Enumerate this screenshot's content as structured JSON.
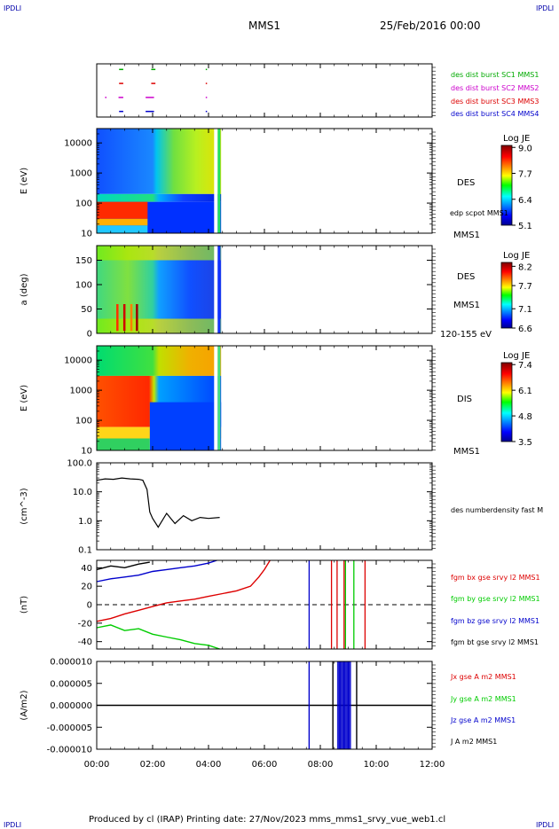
{
  "header": {
    "corner_left": "IPDLI",
    "corner_right": "IPDLI",
    "mission": "MMS1",
    "date": "25/Feb/2016 00:00"
  },
  "footer": {
    "text": "Produced by cl (IRAP)   Printing date: 27/Nov/2023   mms_mms1_srvy_vue_web1.cl",
    "corner_left": "IPDLI",
    "corner_right": "IPDLI"
  },
  "time_axis": {
    "range_hours": [
      0,
      12
    ],
    "tick_hours": [
      0,
      2,
      4,
      6,
      8,
      10,
      12
    ],
    "tick_labels": [
      "00:00",
      "02:00",
      "04:00",
      "06:00",
      "08:00",
      "10:00",
      "12:00"
    ]
  },
  "chart_data": [
    {
      "type": "scatter",
      "id": "burst",
      "yticks": [
        1,
        2,
        3,
        4
      ],
      "ylim": [
        0.6,
        4.4
      ],
      "series": [
        {
          "name": "des dist burst SC1 MMS1",
          "color": "#00aa00",
          "y": 4,
          "segments": [
            [
              0.8,
              0.95
            ],
            [
              1.95,
              2.1
            ],
            [
              3.9,
              3.92
            ]
          ]
        },
        {
          "name": "des dist burst SC2 MMS2",
          "color": "#cc00cc",
          "y": 2,
          "segments": [
            [
              0.3,
              0.35
            ],
            [
              0.78,
              0.95
            ],
            [
              1.75,
              2.05
            ],
            [
              3.9,
              3.92
            ]
          ]
        },
        {
          "name": "des dist burst SC3 MMS3",
          "color": "#dd0000",
          "y": 3,
          "segments": [
            [
              0.8,
              0.95
            ],
            [
              1.95,
              2.1
            ],
            [
              3.9,
              3.92
            ]
          ]
        },
        {
          "name": "des dist burst SC4 MMS4",
          "color": "#0000cc",
          "y": 1,
          "segments": [
            [
              0.8,
              0.95
            ],
            [
              1.75,
              2.05
            ],
            [
              3.9,
              3.92
            ]
          ]
        }
      ]
    },
    {
      "type": "heatmap",
      "id": "des_energy",
      "ylabel": "E (eV)",
      "yscale": "log",
      "ylim": [
        10,
        30000
      ],
      "ytick_values": [
        10,
        100,
        1000,
        10000
      ],
      "ytick_labels": [
        "10",
        "100",
        "1000",
        "10000"
      ],
      "side_labels": [
        "DES",
        "edp scpot MMS1",
        "MMS1"
      ],
      "colorbar": {
        "title": "Log JE",
        "min": 5.1,
        "max": 9.1,
        "tick_values": [
          9.0,
          7.7,
          6.4,
          5.1
        ],
        "tick_labels": [
          "9.0",
          "7.7",
          "6.4",
          "5.1"
        ]
      }
    },
    {
      "type": "heatmap",
      "id": "des_pitch",
      "ylabel": "a (deg)",
      "ylim": [
        0,
        180
      ],
      "ytick_values": [
        0,
        50,
        100,
        150
      ],
      "ytick_labels": [
        "0",
        "50",
        "100",
        "150"
      ],
      "side_labels": [
        "DES",
        "MMS1",
        "120-155 eV"
      ],
      "colorbar": {
        "title": "Log JE",
        "min": 6.6,
        "max": 8.3,
        "tick_values": [
          8.2,
          7.7,
          7.1,
          6.6
        ],
        "tick_labels": [
          "8.2",
          "7.7",
          "7.1",
          "6.6"
        ]
      }
    },
    {
      "type": "heatmap",
      "id": "dis_energy",
      "ylabel": "E (eV)",
      "yscale": "log",
      "ylim": [
        10,
        30000
      ],
      "ytick_values": [
        10,
        100,
        1000,
        10000
      ],
      "ytick_labels": [
        "10",
        "100",
        "1000",
        "10000"
      ],
      "side_labels": [
        "DIS",
        "MMS1"
      ],
      "colorbar": {
        "title": "Log JE",
        "min": 3.5,
        "max": 7.5,
        "tick_values": [
          7.4,
          6.1,
          4.8,
          3.5
        ],
        "tick_labels": [
          "7.4",
          "6.1",
          "4.8",
          "3.5"
        ]
      }
    },
    {
      "type": "line",
      "id": "density",
      "ylabel": "(cm^-3)",
      "yscale": "log",
      "ylim": [
        0.1,
        100
      ],
      "ytick_values": [
        0.1,
        1,
        10,
        100
      ],
      "ytick_labels": [
        "0.1",
        "1.0",
        "10.0",
        "100.0"
      ],
      "series": [
        {
          "name": "des numberdensity fast M",
          "color": "#000000",
          "x": [
            0.0,
            0.3,
            0.6,
            0.9,
            1.2,
            1.5,
            1.65,
            1.8,
            1.9,
            2.0,
            2.2,
            2.5,
            2.8,
            3.1,
            3.4,
            3.7,
            4.0,
            4.4
          ],
          "y": [
            25,
            28,
            27,
            30,
            28,
            27,
            25,
            12,
            2.0,
            1.2,
            0.6,
            1.8,
            0.8,
            1.5,
            1.0,
            1.3,
            1.2,
            1.3
          ]
        }
      ]
    },
    {
      "type": "line",
      "id": "fgm",
      "ylabel": "(nT)",
      "ylim": [
        -48,
        48
      ],
      "ytick_values": [
        -40,
        -20,
        0,
        20,
        40
      ],
      "ytick_labels": [
        "-40",
        "-20",
        "0",
        "20",
        "40"
      ],
      "series": [
        {
          "name": "fgm bx gse srvy l2 MMS1",
          "color": "#dd0000",
          "x": [
            0.0,
            0.5,
            1.0,
            1.5,
            2.0,
            2.5,
            3.0,
            3.5,
            4.0,
            4.5,
            5.0,
            5.5,
            5.8,
            6.0,
            6.2
          ],
          "y": [
            -18,
            -15,
            -10,
            -6,
            -2,
            2,
            4,
            6,
            9,
            12,
            15,
            20,
            30,
            38,
            48
          ]
        },
        {
          "name": "fgm by gse srvy l2 MMS1",
          "color": "#00cc00",
          "x": [
            0.0,
            0.5,
            1.0,
            1.5,
            2.0,
            2.5,
            3.0,
            3.5,
            4.0,
            4.4
          ],
          "y": [
            -25,
            -22,
            -28,
            -26,
            -32,
            -35,
            -38,
            -42,
            -44,
            -48
          ]
        },
        {
          "name": "fgm bz gse srvy l2 MMS1",
          "color": "#0000cc",
          "x": [
            0.0,
            0.5,
            1.0,
            1.5,
            2.0,
            2.5,
            3.0,
            3.5,
            4.0,
            4.3
          ],
          "y": [
            25,
            28,
            30,
            32,
            36,
            38,
            40,
            42,
            45,
            48
          ]
        },
        {
          "name": "fgm bt gse srvy l2 MMS1",
          "color": "#000000",
          "x": [
            0.0,
            0.5,
            1.0,
            1.5,
            1.9
          ],
          "y": [
            38,
            42,
            40,
            44,
            46
          ]
        }
      ],
      "reference_line": 0
    },
    {
      "type": "line",
      "id": "current",
      "ylabel": "(A/m2)",
      "ylim": [
        -1e-05,
        1e-05
      ],
      "ytick_values": [
        -1e-05,
        -5e-06,
        0,
        5e-06,
        1e-05
      ],
      "ytick_labels": [
        "-0.000010",
        "-0.000005",
        "0.000000",
        "0.000005",
        "0.000010"
      ],
      "series": [
        {
          "name": "Jx gse A m2 MMS1",
          "color": "#dd0000"
        },
        {
          "name": "Jy gse A m2 MMS1",
          "color": "#00cc00"
        },
        {
          "name": "Jz gse A m2 MMS1",
          "color": "#0000cc"
        },
        {
          "name": "J A m2 MMS1",
          "color": "#000000"
        }
      ]
    }
  ]
}
